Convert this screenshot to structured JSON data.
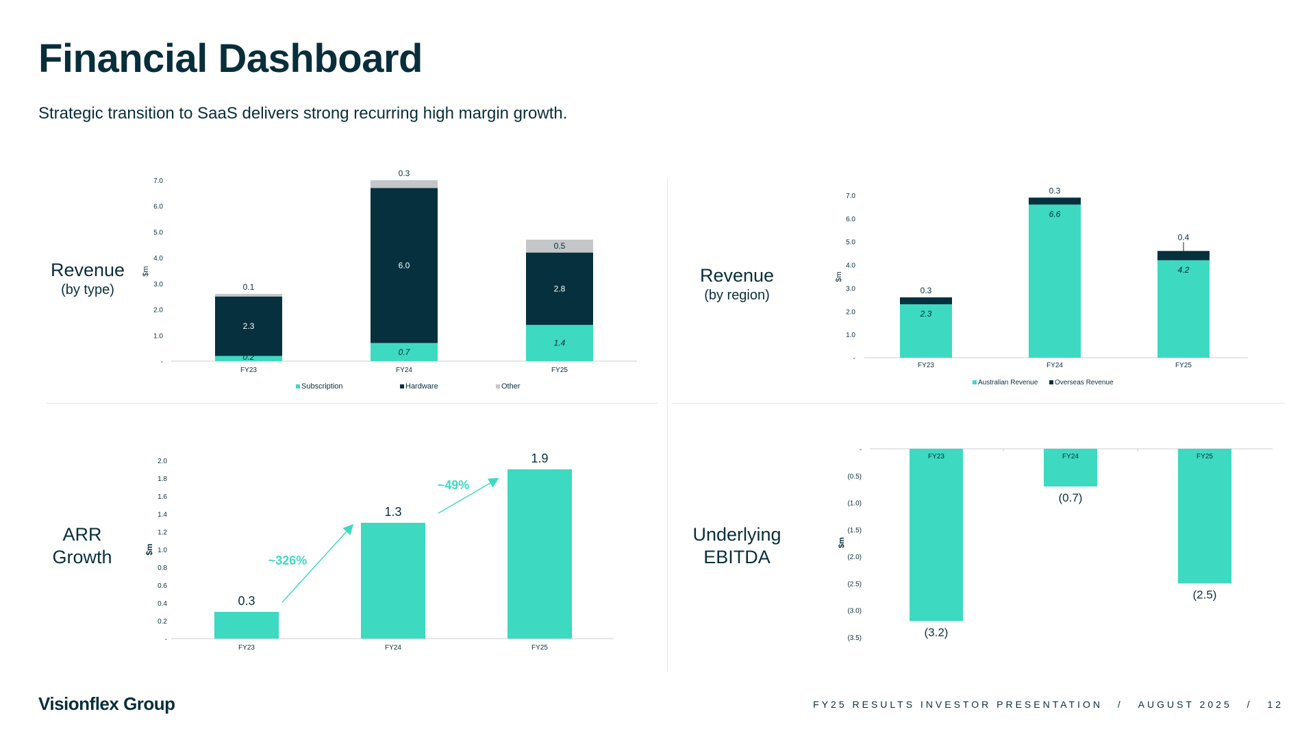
{
  "header": {
    "title": "Financial Dashboard",
    "subtitle": "Strategic transition to SaaS delivers strong recurring high margin growth."
  },
  "panels": {
    "revenue_type": {
      "label": "Revenue",
      "sub": "(by type)"
    },
    "revenue_region": {
      "label": "Revenue",
      "sub": "(by region)"
    },
    "arr": {
      "label1": "ARR",
      "label2": "Growth"
    },
    "ebitda": {
      "label1": "Underlying",
      "label2": "EBITDA"
    }
  },
  "colors": {
    "teal": "#3dd9c1",
    "navy": "#06303d",
    "grey": "#c4c6c8",
    "axis": "#c8cdd0"
  },
  "chart_data": [
    {
      "id": "revenue_type",
      "type": "bar",
      "stacked": true,
      "categories": [
        "FY23",
        "FY24",
        "FY25"
      ],
      "series": [
        {
          "name": "Subscription",
          "values": [
            0.2,
            0.7,
            1.4
          ],
          "labels": [
            "0.2",
            "0.7",
            "1.4"
          ],
          "color": "#3dd9c1"
        },
        {
          "name": "Hardware",
          "values": [
            2.3,
            6.0,
            2.8
          ],
          "labels": [
            "2.3",
            "6.0",
            "2.8"
          ],
          "color": "#06303d"
        },
        {
          "name": "Other",
          "values": [
            0.1,
            0.3,
            0.5
          ],
          "labels": [
            "0.1",
            "0.3",
            "0.5"
          ],
          "color": "#c4c6c8"
        }
      ],
      "ylabel": "$m",
      "ylim": [
        0,
        7
      ],
      "yticks": [
        "-",
        "1.0",
        "2.0",
        "3.0",
        "4.0",
        "5.0",
        "6.0",
        "7.0"
      ],
      "legend": "bottom"
    },
    {
      "id": "revenue_region",
      "type": "bar",
      "stacked": true,
      "categories": [
        "FY23",
        "FY24",
        "FY25"
      ],
      "series": [
        {
          "name": "Australian Revenue",
          "values": [
            2.3,
            6.6,
            4.2
          ],
          "labels": [
            "2.3",
            "6.6",
            "4.2"
          ],
          "color": "#3dd9c1"
        },
        {
          "name": "Overseas Revenue",
          "values": [
            0.3,
            0.3,
            0.4
          ],
          "labels": [
            "0.3",
            "0.3",
            "0.4"
          ],
          "color": "#06303d"
        }
      ],
      "ylabel": "$m",
      "ylim": [
        0,
        7
      ],
      "yticks": [
        "-",
        "1.0",
        "2.0",
        "3.0",
        "4.0",
        "5.0",
        "6.0",
        "7.0"
      ],
      "legend": "bottom"
    },
    {
      "id": "arr",
      "type": "bar",
      "categories": [
        "FY23",
        "FY24",
        "FY25"
      ],
      "values": [
        0.3,
        1.3,
        1.9
      ],
      "labels": [
        "0.3",
        "1.3",
        "1.9"
      ],
      "annotations": [
        "~326%",
        "~49%"
      ],
      "ylabel": "$m",
      "ylim": [
        0,
        2
      ],
      "yticks": [
        "-",
        "0.2",
        "0.4",
        "0.6",
        "0.8",
        "1.0",
        "1.2",
        "1.4",
        "1.6",
        "1.8",
        "2.0"
      ]
    },
    {
      "id": "ebitda",
      "type": "bar",
      "categories": [
        "FY23",
        "FY24",
        "FY25"
      ],
      "values": [
        -3.2,
        -0.7,
        -2.5
      ],
      "labels": [
        "(3.2)",
        "(0.7)",
        "(2.5)"
      ],
      "ylabel": "$m",
      "ylim": [
        -3.5,
        0
      ],
      "yticks": [
        "-",
        "(0.5)",
        "(1.0)",
        "(1.5)",
        "(2.0)",
        "(2.5)",
        "(3.0)",
        "(3.5)"
      ]
    }
  ],
  "footer": {
    "logo": "Visionflex Group",
    "presentation": "FY25 RESULTS INVESTOR PRESENTATION",
    "separator": "/",
    "date": "AUGUST 2025",
    "page": "12"
  }
}
